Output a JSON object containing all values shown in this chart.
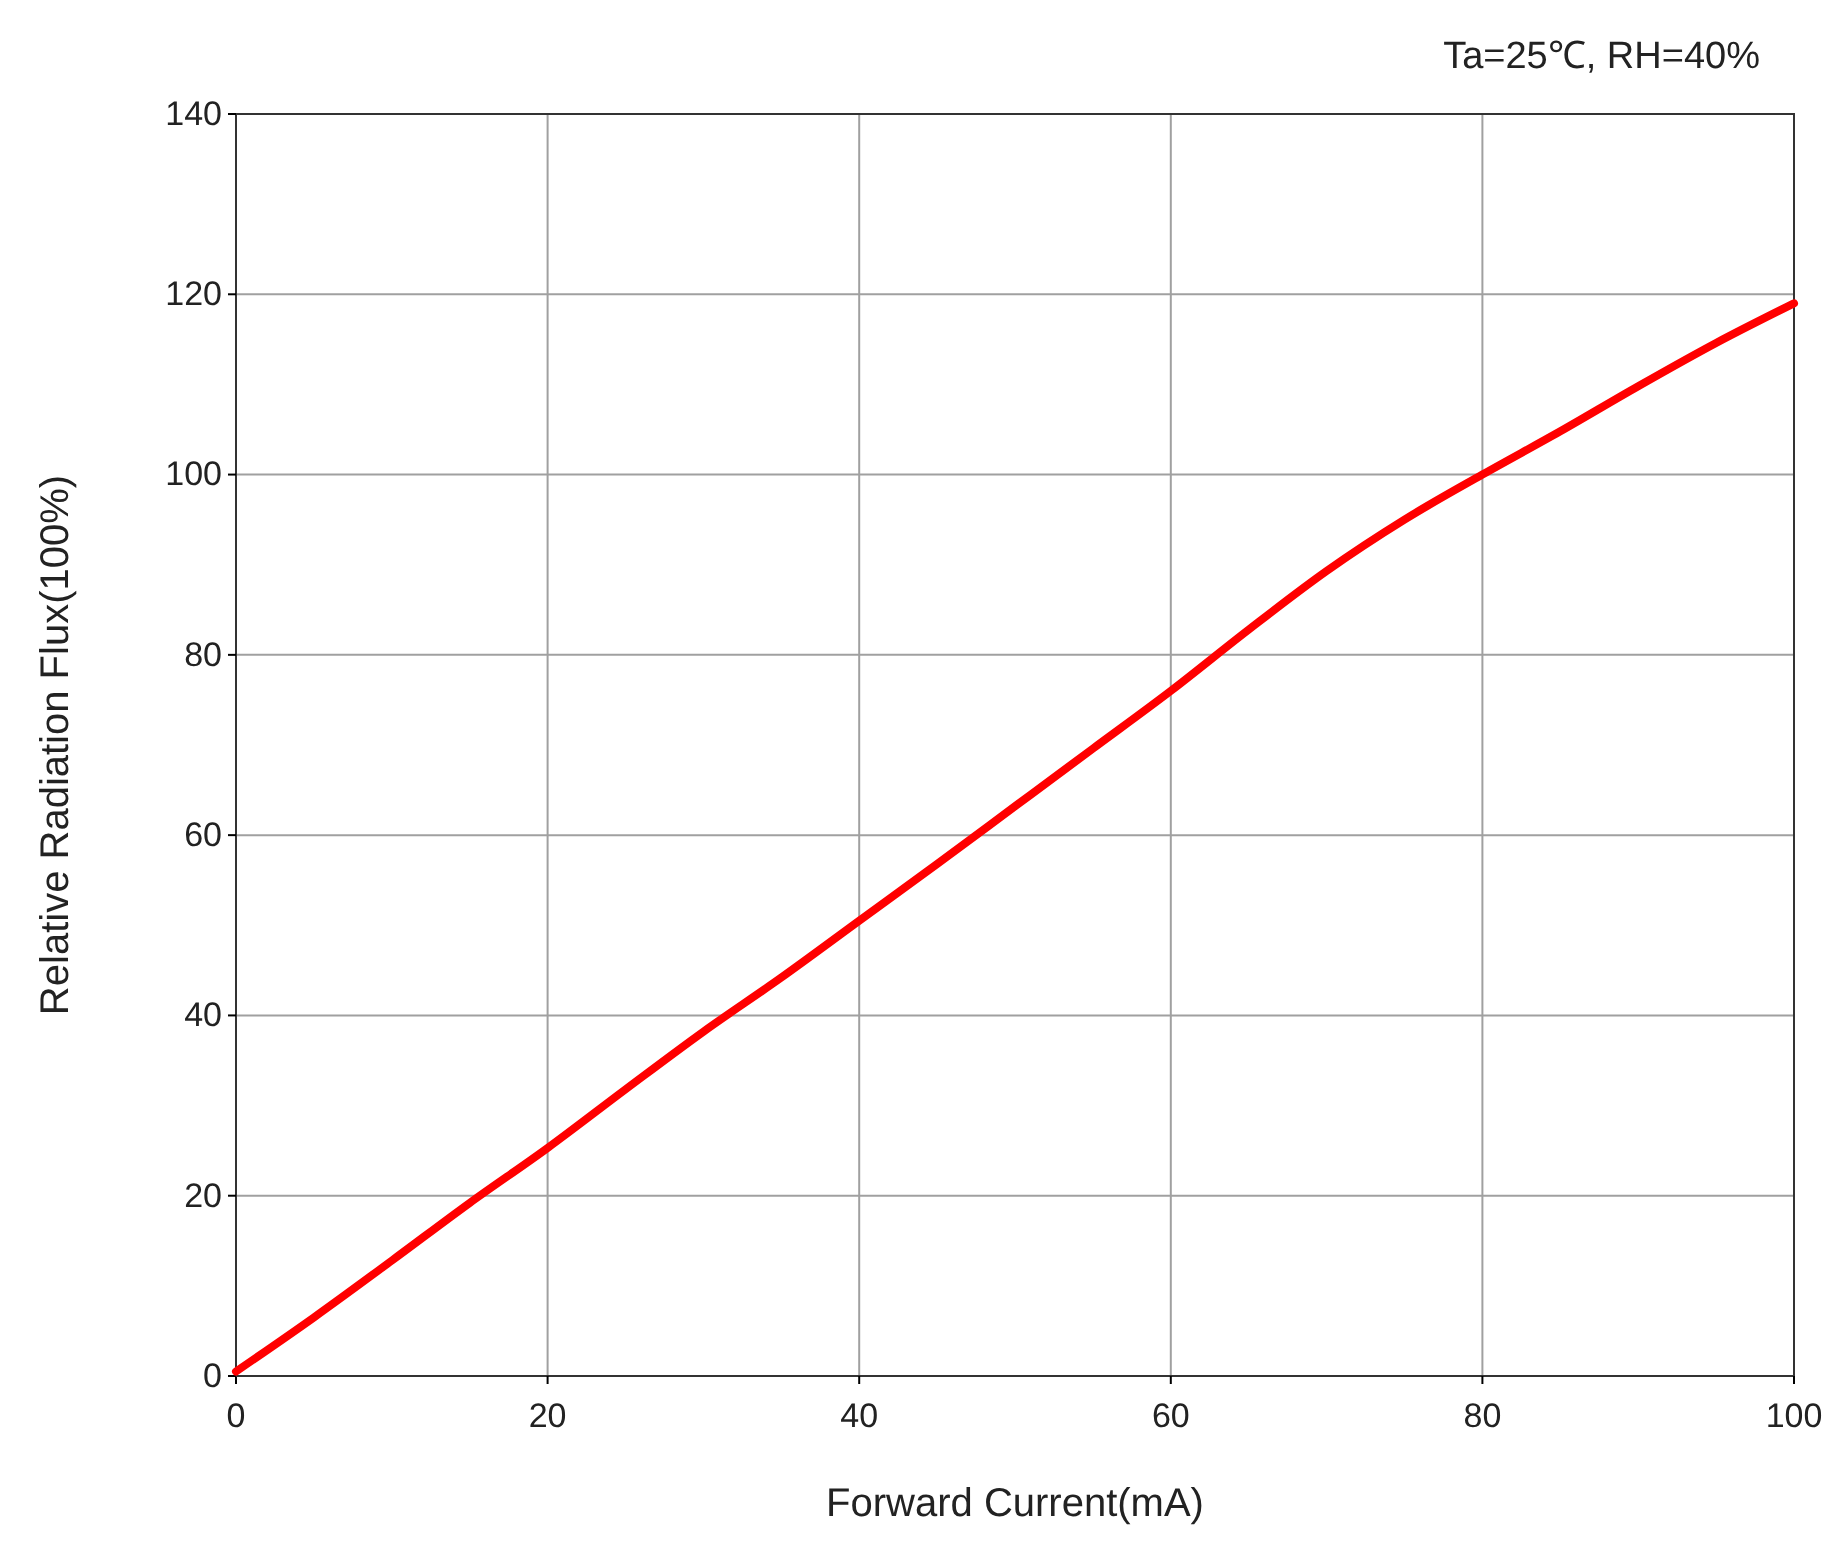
{
  "chart_data": {
    "type": "line",
    "xlabel": "Forward Current(mA)",
    "ylabel": "Relative Radiation Flux(100%)",
    "annotations": [
      "Ta=25℃, RH=40%"
    ],
    "x": [
      0,
      5,
      10,
      15,
      20,
      25,
      30,
      35,
      40,
      45,
      50,
      55,
      60,
      65,
      70,
      75,
      80,
      85,
      90,
      95,
      100
    ],
    "series": [
      {
        "color": "#ff0000",
        "values": [
          0.5,
          6.5,
          12.8,
          19.2,
          25.3,
          31.8,
          38.2,
          44.2,
          50.5,
          56.8,
          63.2,
          69.6,
          76,
          82.8,
          89.3,
          95,
          100,
          104.8,
          109.8,
          114.6,
          119
        ]
      }
    ],
    "xlim": [
      0,
      100
    ],
    "xticks": [
      0,
      20,
      40,
      60,
      80,
      100
    ],
    "ylim": [
      0,
      140
    ],
    "yticks": [
      0,
      20,
      40,
      60,
      80,
      100,
      120,
      140
    ],
    "grid": true,
    "marker": "none",
    "line_style": "solid"
  }
}
